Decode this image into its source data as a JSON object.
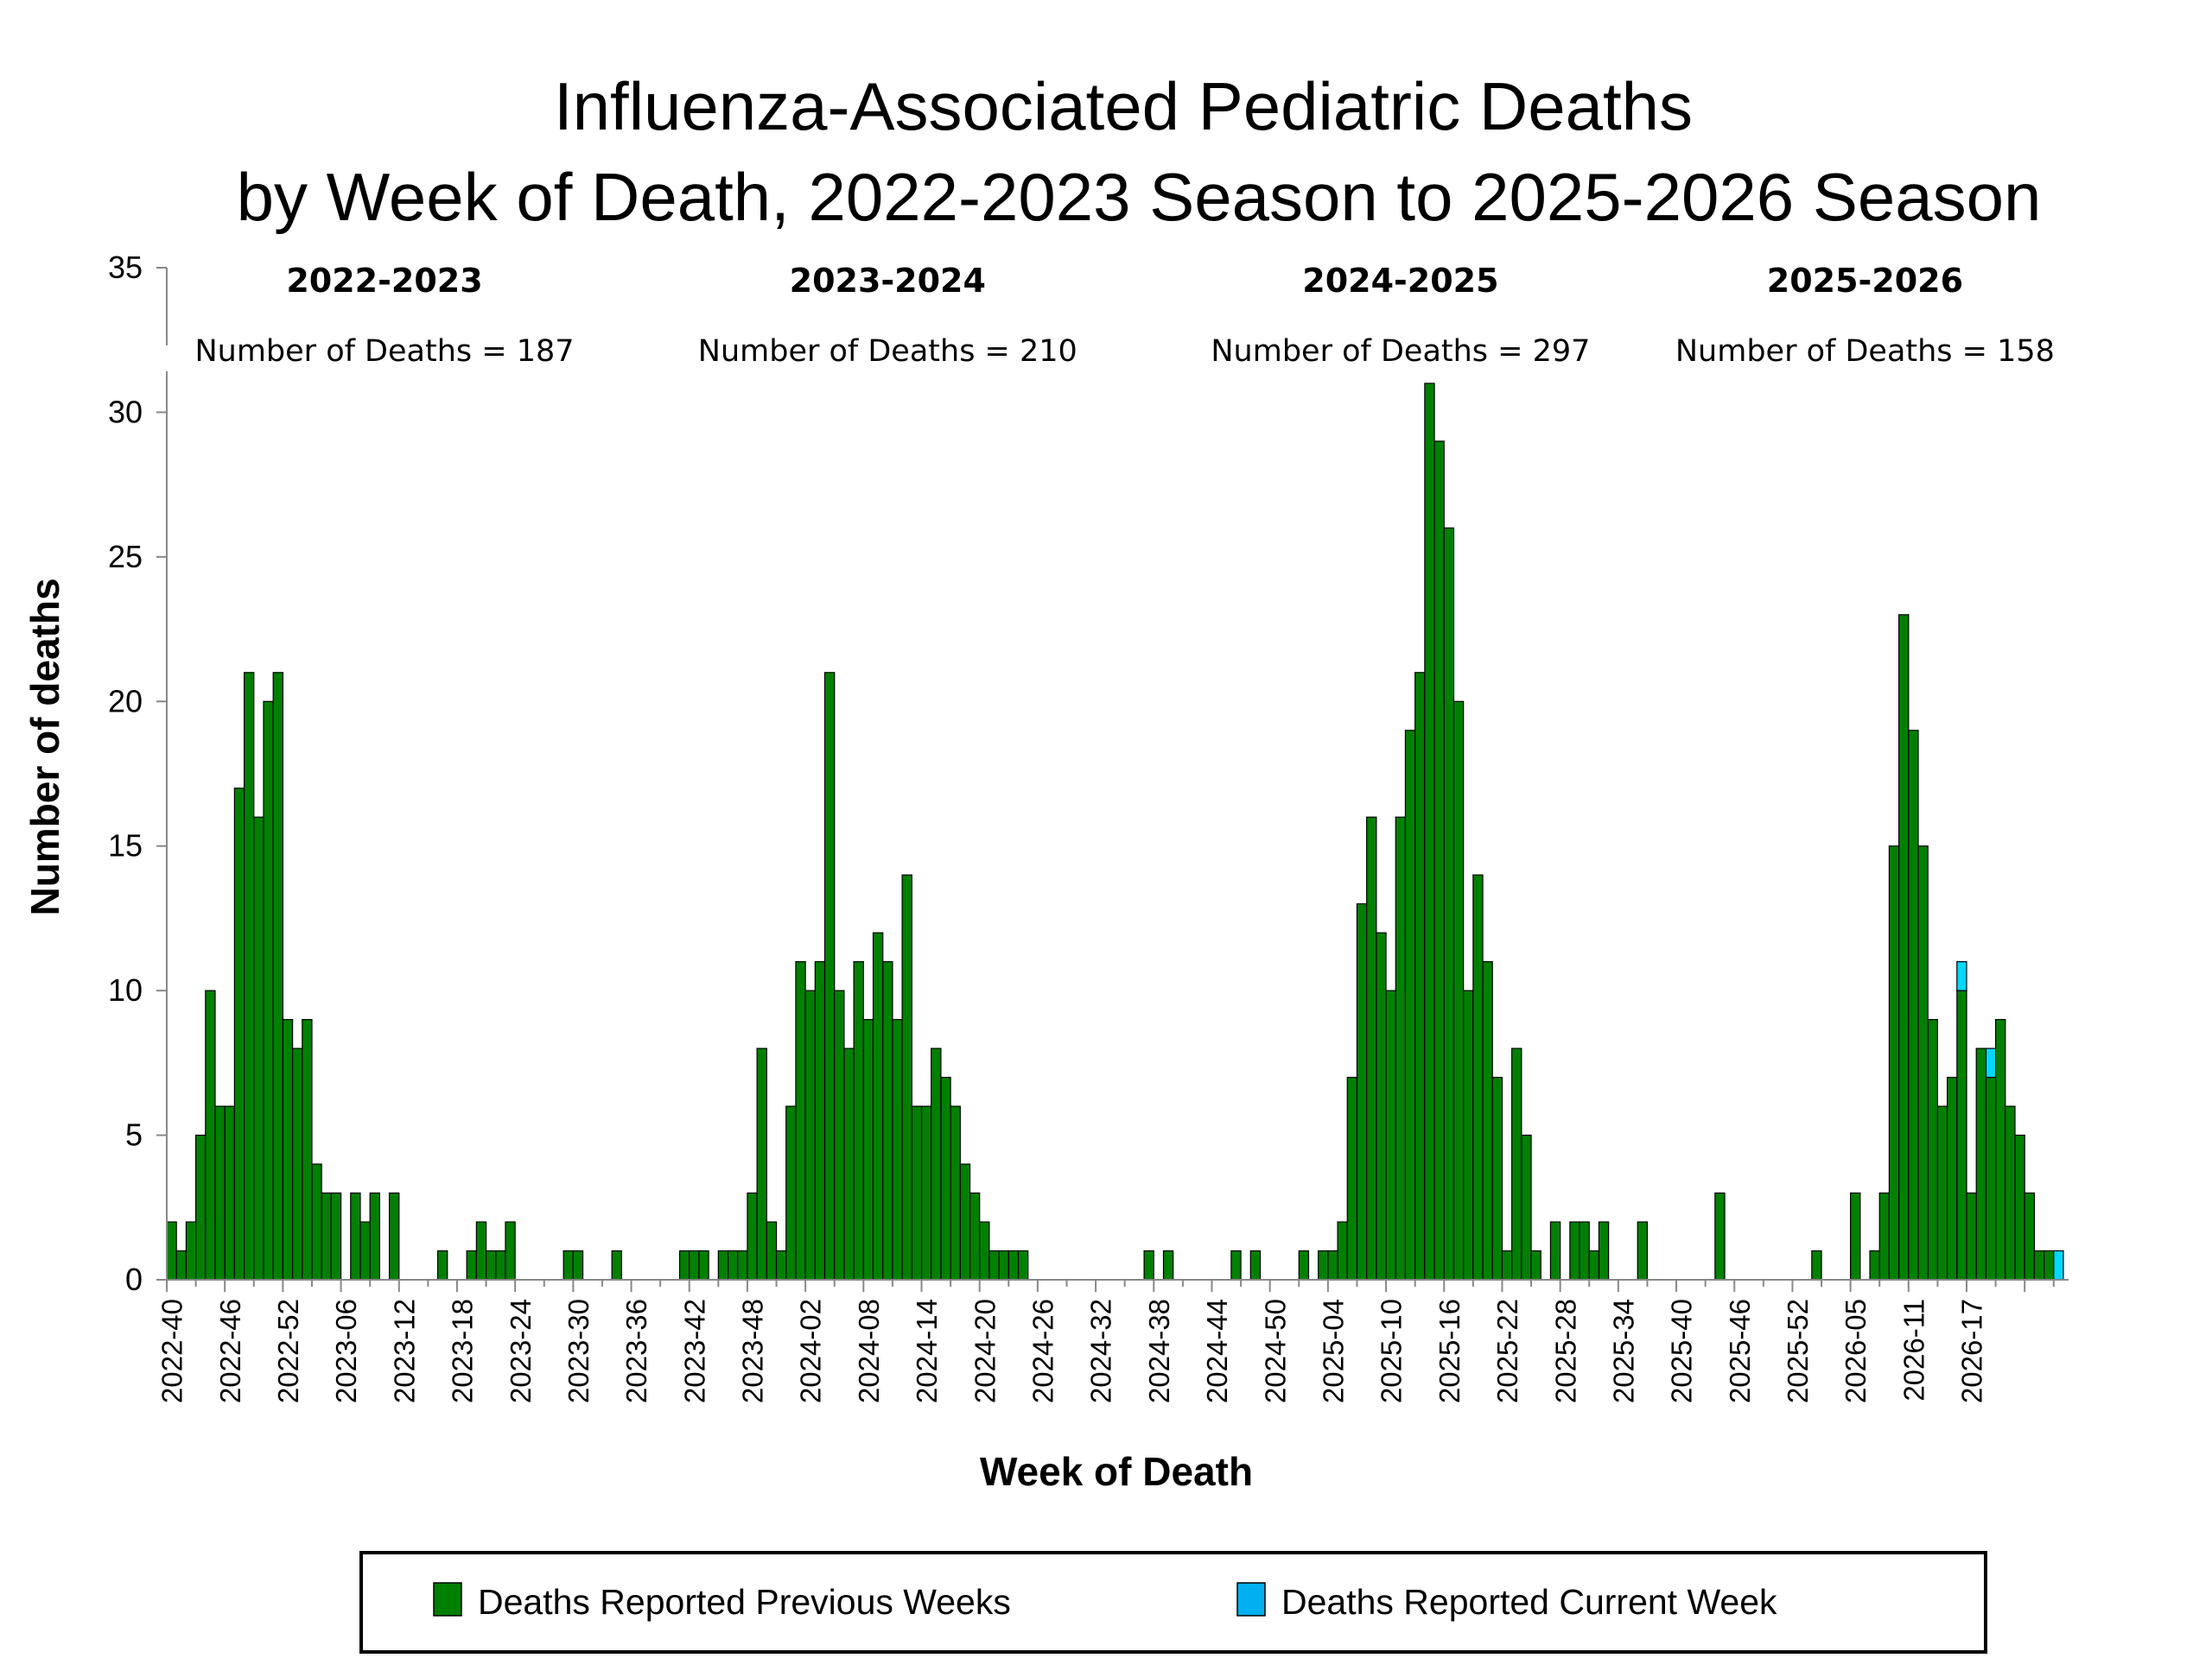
{
  "chart_data": {
    "type": "bar",
    "stacked": true,
    "title_lines": [
      "Influenza-Associated Pediatric Deaths",
      "by Week of Death, 2022-2023 Season to 2025-2026 Season"
    ],
    "xlabel": "Week of Death",
    "ylabel": "Number of deaths",
    "ylim": [
      0,
      35
    ],
    "yticks": [
      0,
      5,
      10,
      15,
      20,
      25,
      30,
      35
    ],
    "grid": false,
    "legend_position": "bottom",
    "colors": {
      "previous": "#008000",
      "current": "#00d8ff",
      "legend_current": "#00b0f0",
      "axis": "#888888"
    },
    "tick_labels": [
      "2022-40",
      "2022-46",
      "2022-52",
      "2023-06",
      "2023-12",
      "2023-18",
      "2023-24",
      "2023-30",
      "2023-36",
      "2023-42",
      "2023-48",
      "2024-02",
      "2024-08",
      "2024-14",
      "2024-20",
      "2024-26",
      "2024-32",
      "2024-38",
      "2024-44",
      "2024-50",
      "2025-04",
      "2025-10",
      "2025-16",
      "2025-22",
      "2025-28",
      "2025-34",
      "2025-40",
      "2025-46",
      "2025-52",
      "2026-05",
      "2026-11",
      "2026-17"
    ],
    "series": [
      {
        "name": "Deaths Reported Previous Weeks",
        "values": [
          2,
          1,
          2,
          5,
          10,
          6,
          6,
          17,
          21,
          16,
          20,
          21,
          9,
          8,
          9,
          4,
          3,
          3,
          0,
          3,
          2,
          3,
          0,
          3,
          0,
          0,
          0,
          0,
          1,
          0,
          0,
          1,
          2,
          1,
          1,
          2,
          0,
          0,
          0,
          0,
          0,
          1,
          1,
          0,
          0,
          0,
          1,
          0,
          0,
          0,
          0,
          0,
          0,
          1,
          1,
          1,
          0,
          1,
          1,
          1,
          3,
          8,
          2,
          1,
          6,
          11,
          10,
          11,
          21,
          10,
          8,
          11,
          9,
          12,
          11,
          9,
          14,
          6,
          6,
          8,
          7,
          6,
          4,
          3,
          2,
          1,
          1,
          1,
          1,
          0,
          0,
          0,
          0,
          0,
          0,
          0,
          0,
          0,
          0,
          0,
          0,
          1,
          0,
          1,
          0,
          0,
          0,
          0,
          0,
          0,
          1,
          0,
          1,
          0,
          0,
          0,
          0,
          1,
          0,
          1,
          1,
          2,
          7,
          13,
          16,
          12,
          10,
          16,
          19,
          21,
          31,
          29,
          26,
          20,
          10,
          14,
          11,
          7,
          1,
          8,
          5,
          1,
          0,
          2,
          0,
          2,
          2,
          1,
          2,
          0,
          0,
          0,
          2,
          0,
          0,
          0,
          0,
          0,
          0,
          0,
          3,
          0,
          0,
          0,
          0,
          0,
          0,
          0,
          0,
          0,
          1,
          0,
          0,
          0,
          3,
          0,
          1,
          3,
          15,
          23,
          19,
          15,
          9,
          6,
          7,
          10,
          3,
          8,
          7,
          9,
          6,
          5,
          3,
          1,
          1,
          0
        ]
      },
      {
        "name": "Deaths Reported Current Week",
        "values": [
          0,
          0,
          0,
          0,
          0,
          0,
          0,
          0,
          0,
          0,
          0,
          0,
          0,
          0,
          0,
          0,
          0,
          0,
          0,
          0,
          0,
          0,
          0,
          0,
          0,
          0,
          0,
          0,
          0,
          0,
          0,
          0,
          0,
          0,
          0,
          0,
          0,
          0,
          0,
          0,
          0,
          0,
          0,
          0,
          0,
          0,
          0,
          0,
          0,
          0,
          0,
          0,
          0,
          0,
          0,
          0,
          0,
          0,
          0,
          0,
          0,
          0,
          0,
          0,
          0,
          0,
          0,
          0,
          0,
          0,
          0,
          0,
          0,
          0,
          0,
          0,
          0,
          0,
          0,
          0,
          0,
          0,
          0,
          0,
          0,
          0,
          0,
          0,
          0,
          0,
          0,
          0,
          0,
          0,
          0,
          0,
          0,
          0,
          0,
          0,
          0,
          0,
          0,
          0,
          0,
          0,
          0,
          0,
          0,
          0,
          0,
          0,
          0,
          0,
          0,
          0,
          0,
          0,
          0,
          0,
          0,
          0,
          0,
          0,
          0,
          0,
          0,
          0,
          0,
          0,
          0,
          0,
          0,
          0,
          0,
          0,
          0,
          0,
          0,
          0,
          0,
          0,
          0,
          0,
          0,
          0,
          0,
          0,
          0,
          0,
          0,
          0,
          0,
          0,
          0,
          0,
          0,
          0,
          0,
          0,
          0,
          0,
          0,
          0,
          0,
          0,
          0,
          0,
          0,
          0,
          0,
          0,
          0,
          0,
          0,
          0,
          0,
          0,
          0,
          0,
          0,
          0,
          0,
          0,
          0,
          1,
          0,
          0,
          1,
          0,
          0,
          0,
          0,
          0,
          0,
          1
        ]
      }
    ],
    "seasons": [
      {
        "label": "2022-2023",
        "count_text": "Number of Deaths = 187",
        "center_week_index": 22
      },
      {
        "label": "2023-2024",
        "count_text": "Number of Deaths = 210",
        "center_week_index": 74
      },
      {
        "label": "2024-2025",
        "count_text": "Number of Deaths = 297",
        "center_week_index": 127
      },
      {
        "label": "2025-2026",
        "count_text": "Number of Deaths = 158",
        "center_week_index": 175
      }
    ]
  }
}
